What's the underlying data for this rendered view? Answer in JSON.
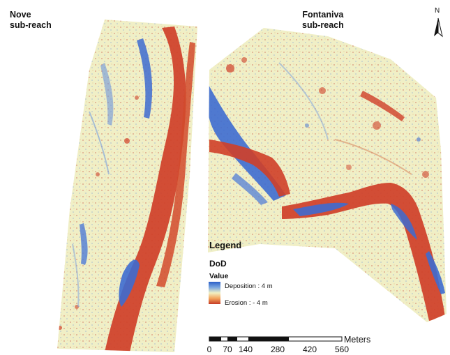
{
  "reaches": {
    "nove": {
      "label_line1": "Nove",
      "label_line2": "sub-reach"
    },
    "fontaniva": {
      "label_line1": "Fontaniva",
      "label_line2": "sub-reach"
    }
  },
  "north_arrow": {
    "letter": "N"
  },
  "legend": {
    "title": "Legend",
    "layer": "DoD",
    "field": "Value",
    "high_label": "Deposition : 4 m",
    "low_label": "Erosion : - 4 m",
    "ramp_colors": [
      "#2b5fc8",
      "#7aa6e0",
      "#f1f0c2",
      "#f2a35a",
      "#c53a26"
    ]
  },
  "scale_bar": {
    "unit": "Meters",
    "ticks": [
      "0",
      "70",
      "140",
      "280",
      "420",
      "560"
    ]
  },
  "colors": {
    "background": "#f0efc6",
    "deposition": "#3d6bd0",
    "erosion": "#cf3f28"
  }
}
